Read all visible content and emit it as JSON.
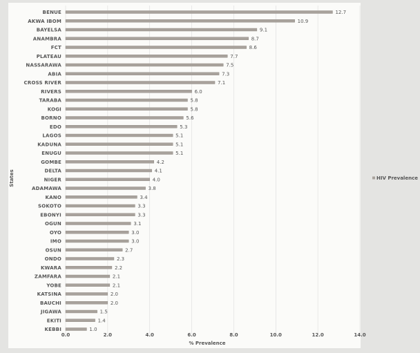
{
  "chart_data": {
    "type": "bar",
    "orientation": "horizontal",
    "title": "",
    "xlabel": "% Prevalence",
    "ylabel": "States",
    "xlim": [
      0,
      14
    ],
    "xticks": [
      "0.0",
      "2.0",
      "4.0",
      "6.0",
      "8.0",
      "10.0",
      "12.0",
      "14.0"
    ],
    "grid": "vertical",
    "legend": "right",
    "categories": [
      "BENUE",
      "AKWA IBOM",
      "BAYELSA",
      "ANAMBRA",
      "FCT",
      "PLATEAU",
      "NASSARAWA",
      "ABIA",
      "CROSS RIVER",
      "RIVERS",
      "TARABA",
      "KOGI",
      "BORNO",
      "EDO",
      "LAGOS",
      "KADUNA",
      "ENUGU",
      "GOMBE",
      "DELTA",
      "NIGER",
      "ADAMAWA",
      "KANO",
      "SOKOTO",
      "EBONYI",
      "OGUN",
      "OYO",
      "IMO",
      "OSUN",
      "ONDO",
      "KWARA",
      "ZAMFARA",
      "YOBE",
      "KATSINA",
      "BAUCHI",
      "JIGAWA",
      "EKITI",
      "KEBBI"
    ],
    "series": [
      {
        "name": "HIV Prevalence",
        "color": "#a8a29c",
        "values": [
          12.7,
          10.9,
          9.1,
          8.7,
          8.6,
          7.7,
          7.5,
          7.3,
          7.1,
          6.0,
          5.8,
          5.8,
          5.6,
          5.3,
          5.1,
          5.1,
          5.1,
          4.2,
          4.1,
          4.0,
          3.8,
          3.4,
          3.3,
          3.3,
          3.1,
          3.0,
          3.0,
          2.7,
          2.3,
          2.2,
          2.1,
          2.1,
          2.0,
          2.0,
          1.5,
          1.4,
          1.0
        ],
        "labels": [
          "12.7",
          "10.9",
          "9.1",
          "8.7",
          "8.6",
          "7.7",
          "7.5",
          "7.3",
          "7.1",
          "6.0",
          "5.8",
          "5.8",
          "5.6",
          "5.3",
          "5.1",
          "5.1",
          "5.1",
          "4.2",
          "4.1",
          "4.0",
          "3.8",
          "3.4",
          "3.3",
          "3.3",
          "3.1",
          "3.0",
          "3.0",
          "2.7",
          "2.3",
          "2.2",
          "2.1",
          "2.1",
          "2.0",
          "2.0",
          "1.5",
          "1.4",
          "1.0"
        ]
      }
    ],
    "legend_label": "HIV Prevalence",
    "colors": {
      "grid": "#dcdcdc",
      "text": "#555555",
      "legend_marker": "#a8a29c"
    }
  }
}
